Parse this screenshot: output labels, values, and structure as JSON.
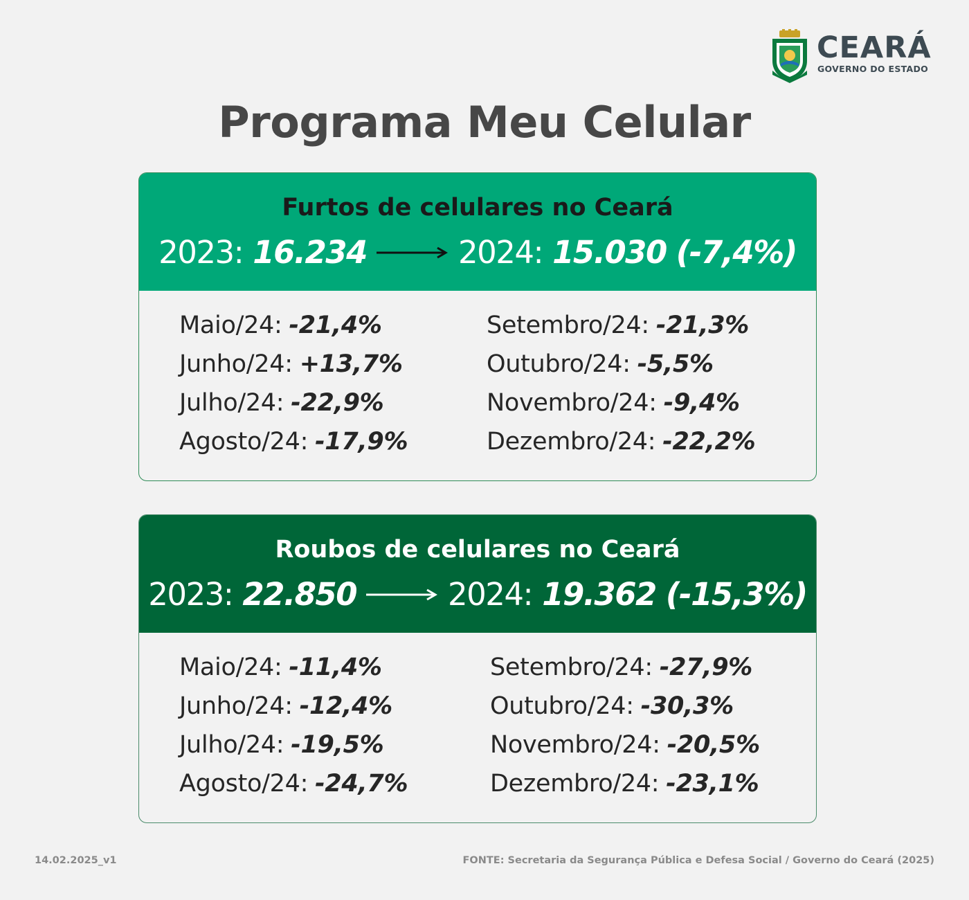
{
  "logo": {
    "name": "CEARÁ",
    "subtitle": "GOVERNO DO ESTADO",
    "icon": "state-coat-of-arms-icon"
  },
  "title": "Programa Meu Celular",
  "furtos": {
    "title": "Furtos de celulares no Ceará",
    "y1_label": "2023:",
    "y1_value": "16.234",
    "y2_label": "2024:",
    "y2_value": "15.030",
    "change": "(-7,4%)",
    "left": [
      {
        "month": "Maio/24:",
        "value": "-21,4%"
      },
      {
        "month": "Junho/24:",
        "value": "+13,7%"
      },
      {
        "month": "Julho/24:",
        "value": "-22,9%"
      },
      {
        "month": "Agosto/24:",
        "value": "-17,9%"
      }
    ],
    "right": [
      {
        "month": "Setembro/24:",
        "value": "-21,3%"
      },
      {
        "month": "Outubro/24:",
        "value": "-5,5%"
      },
      {
        "month": "Novembro/24:",
        "value": "-9,4%"
      },
      {
        "month": "Dezembro/24:",
        "value": "-22,2%"
      }
    ]
  },
  "roubos": {
    "title": "Roubos de celulares no Ceará",
    "y1_label": "2023:",
    "y1_value": "22.850",
    "y2_label": "2024:",
    "y2_value": "19.362",
    "change": "(-15,3%)",
    "left": [
      {
        "month": "Maio/24:",
        "value": "-11,4%"
      },
      {
        "month": "Junho/24:",
        "value": "-12,4%"
      },
      {
        "month": "Julho/24:",
        "value": "-19,5%"
      },
      {
        "month": "Agosto/24:",
        "value": "-24,7%"
      }
    ],
    "right": [
      {
        "month": "Setembro/24:",
        "value": "-27,9%"
      },
      {
        "month": "Outubro/24:",
        "value": "-30,3%"
      },
      {
        "month": "Novembro/24:",
        "value": "-20,5%"
      },
      {
        "month": "Dezembro/24:",
        "value": "-23,1%"
      }
    ]
  },
  "footer": {
    "version": "14.02.2025_v1",
    "source": "FONTE: Secretaria da Segurança Pública e Defesa Social / Governo do Ceará (2025)"
  },
  "colors": {
    "furtos_header": "#00a878",
    "roubos_header": "#006638",
    "title": "#474747"
  }
}
